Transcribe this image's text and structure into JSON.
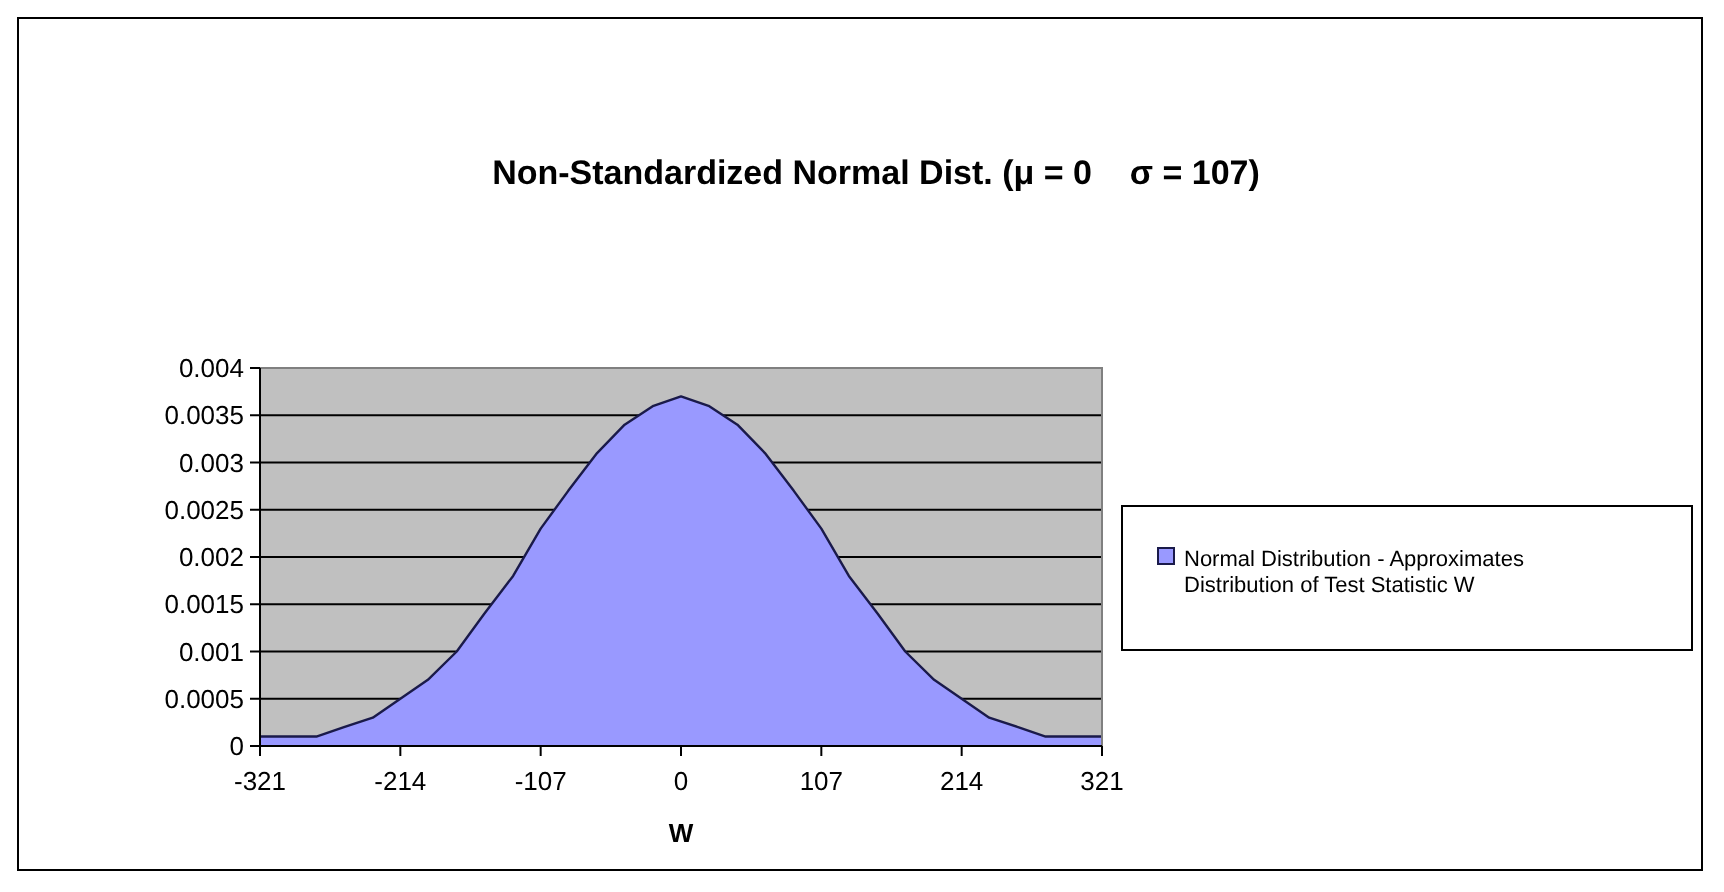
{
  "chart_data": {
    "type": "area",
    "title": "Non-Standardized Normal Dist. (μ = 0    σ = 107)",
    "xlabel": "W",
    "x": [
      -321,
      -300,
      -278,
      -257,
      -235,
      -214,
      -193,
      -171,
      -150,
      -128,
      -107,
      -86,
      -64,
      -43,
      -21,
      0,
      21,
      43,
      64,
      86,
      107,
      128,
      150,
      171,
      193,
      214,
      235,
      257,
      278,
      300,
      321
    ],
    "series": [
      {
        "name": "Normal Distribution - Approximates Distribution of Test Statistic W",
        "color": "#9999ff",
        "values": [
          0.0001,
          0.0001,
          0.0001,
          0.0002,
          0.0003,
          0.0005,
          0.0007,
          0.001,
          0.0014,
          0.0018,
          0.0023,
          0.0027,
          0.0031,
          0.0034,
          0.0036,
          0.0037,
          0.0036,
          0.0034,
          0.0031,
          0.0027,
          0.0023,
          0.0018,
          0.0014,
          0.001,
          0.0007,
          0.0005,
          0.0003,
          0.0002,
          0.0001,
          0.0001,
          0.0001
        ]
      }
    ],
    "xlim": [
      -321,
      321
    ],
    "xticks": [
      -321,
      -214,
      -107,
      0,
      107,
      214,
      321
    ],
    "ylim": [
      0,
      0.004
    ],
    "yticks": [
      0,
      0.0005,
      0.001,
      0.0015,
      0.002,
      0.0025,
      0.003,
      0.0035,
      0.004
    ],
    "grid": "y",
    "legend": "right"
  }
}
